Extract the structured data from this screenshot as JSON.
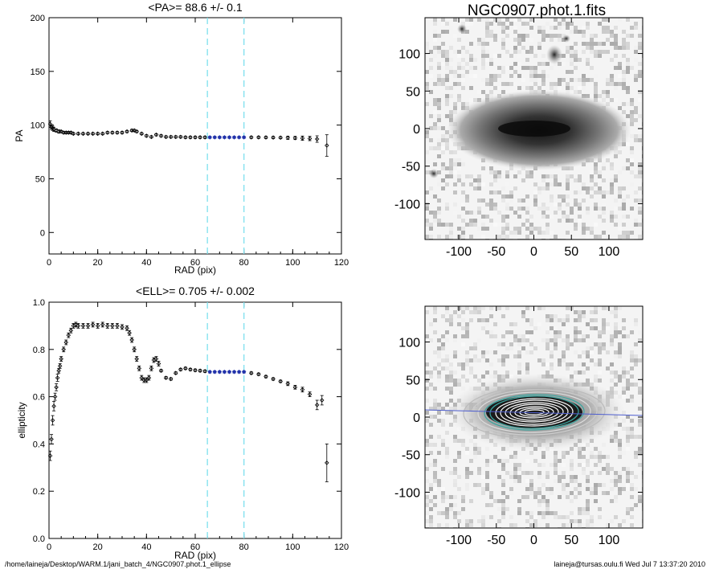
{
  "footer": {
    "left": "/home/laineja/Desktop/WARM.1/jani_batch_4/NGC0907.phot.1_ellipse",
    "right": "laineja@tursas.oulu.fi  Wed Jul  7 13:37:20 2010"
  },
  "image_panels": {
    "title": "NGC0907.phot.1.fits",
    "xticks": [
      "-100",
      "-50",
      "0",
      "50",
      "100"
    ],
    "yticks": [
      "100",
      "50",
      "0",
      "-50",
      "-100"
    ]
  },
  "chart_data": [
    {
      "type": "scatter",
      "title": "<PA>=  88.6 +/-   0.1",
      "xlabel": "RAD (pix)",
      "ylabel": "PA",
      "xlim": [
        0,
        120
      ],
      "ylim": [
        -20,
        200
      ],
      "xticks": [
        0,
        20,
        40,
        60,
        80,
        100,
        120
      ],
      "yticks": [
        0,
        50,
        100,
        150,
        200
      ],
      "vlines": [
        65,
        80
      ],
      "mean": 88.6,
      "x": [
        0.5,
        1,
        1.5,
        2,
        3,
        4,
        5,
        6,
        7,
        8,
        9,
        10,
        12,
        14,
        16,
        18,
        20,
        22,
        24,
        26,
        28,
        30,
        32,
        34,
        35,
        36,
        38,
        40,
        42,
        44,
        46,
        48,
        50,
        52,
        54,
        56,
        58,
        60,
        62,
        64,
        66,
        68,
        70,
        72,
        74,
        76,
        78,
        80,
        83,
        86,
        89,
        92,
        95,
        98,
        101,
        104,
        107,
        110,
        114
      ],
      "values": [
        101,
        98,
        97,
        96,
        95,
        94,
        94,
        93,
        93,
        93,
        93,
        92,
        92,
        92,
        92,
        92,
        92,
        92,
        93,
        93,
        93,
        93,
        94,
        95,
        95,
        94,
        92,
        90,
        89,
        91,
        90,
        89,
        89,
        89,
        89,
        88.6,
        88.6,
        88.6,
        88.6,
        88.6,
        88.6,
        88.6,
        88.6,
        88.6,
        88.6,
        88.6,
        88.6,
        88.6,
        88.6,
        88.6,
        88.5,
        88.4,
        88.3,
        88.2,
        88,
        87.8,
        87.5,
        87,
        81
      ],
      "errors": [
        3,
        2,
        2,
        2,
        1.5,
        1.5,
        1,
        1,
        1,
        1,
        1,
        1,
        1,
        1,
        1,
        1,
        1,
        1,
        1,
        1,
        1,
        1,
        1,
        1,
        1,
        1,
        1,
        1,
        1,
        1,
        1,
        1,
        1,
        1,
        1,
        1,
        1,
        1,
        1,
        1,
        1,
        1,
        1,
        1,
        1,
        1,
        1,
        1,
        1,
        1,
        1,
        1,
        1,
        1.5,
        1.5,
        2,
        2,
        3,
        10
      ]
    },
    {
      "type": "scatter",
      "title": "<ELL>= 0.705 +/-  0.002",
      "xlabel": "RAD (pix)",
      "ylabel": "ellipticity",
      "xlim": [
        0,
        120
      ],
      "ylim": [
        0.0,
        1.0
      ],
      "xticks": [
        0,
        20,
        40,
        60,
        80,
        100,
        120
      ],
      "yticks": [
        "0.0",
        "0.2",
        "0.4",
        "0.6",
        "0.8",
        "1.0"
      ],
      "vlines": [
        65,
        80
      ],
      "mean": 0.705,
      "x": [
        0.5,
        1,
        1.5,
        2,
        2.5,
        3,
        3.5,
        4,
        4.5,
        5,
        6,
        7,
        8,
        9,
        10,
        11,
        12,
        14,
        16,
        18,
        20,
        22,
        24,
        26,
        28,
        30,
        32,
        33,
        34,
        35,
        36,
        37,
        38,
        39,
        40,
        41,
        42,
        43,
        44,
        45,
        46,
        48,
        50,
        52,
        54,
        56,
        58,
        60,
        62,
        64,
        66,
        68,
        70,
        72,
        74,
        76,
        78,
        80,
        83,
        86,
        89,
        92,
        95,
        98,
        101,
        104,
        107,
        110,
        112,
        114
      ],
      "values": [
        0.35,
        0.42,
        0.5,
        0.56,
        0.6,
        0.64,
        0.68,
        0.71,
        0.73,
        0.76,
        0.8,
        0.83,
        0.86,
        0.88,
        0.9,
        0.905,
        0.9,
        0.9,
        0.9,
        0.905,
        0.9,
        0.905,
        0.9,
        0.9,
        0.9,
        0.895,
        0.89,
        0.87,
        0.84,
        0.8,
        0.76,
        0.72,
        0.68,
        0.67,
        0.67,
        0.68,
        0.72,
        0.755,
        0.76,
        0.74,
        0.71,
        0.68,
        0.675,
        0.7,
        0.715,
        0.72,
        0.715,
        0.712,
        0.71,
        0.708,
        0.705,
        0.705,
        0.705,
        0.705,
        0.705,
        0.705,
        0.705,
        0.705,
        0.7,
        0.695,
        0.685,
        0.675,
        0.665,
        0.655,
        0.64,
        0.63,
        0.61,
        0.565,
        0.585,
        0.32
      ],
      "errors": [
        0.02,
        0.02,
        0.02,
        0.02,
        0.015,
        0.015,
        0.015,
        0.01,
        0.01,
        0.01,
        0.01,
        0.01,
        0.01,
        0.01,
        0.01,
        0.01,
        0.01,
        0.01,
        0.01,
        0.01,
        0.01,
        0.01,
        0.01,
        0.01,
        0.01,
        0.01,
        0.01,
        0.01,
        0.01,
        0.01,
        0.01,
        0.01,
        0.01,
        0.01,
        0.01,
        0.01,
        0.01,
        0.01,
        0.01,
        0.01,
        0.005,
        0.005,
        0.005,
        0.005,
        0.005,
        0.005,
        0.005,
        0.005,
        0.005,
        0.005,
        0.005,
        0.005,
        0.005,
        0.005,
        0.005,
        0.005,
        0.005,
        0.005,
        0.005,
        0.005,
        0.005,
        0.005,
        0.005,
        0.008,
        0.008,
        0.01,
        0.01,
        0.02,
        0.02,
        0.08
      ]
    }
  ]
}
